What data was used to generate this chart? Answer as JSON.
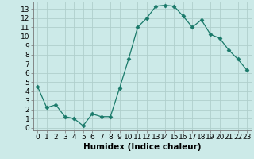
{
  "title": "",
  "xlabel": "Humidex (Indice chaleur)",
  "ylabel": "",
  "x_values": [
    0,
    1,
    2,
    3,
    4,
    5,
    6,
    7,
    8,
    9,
    10,
    11,
    12,
    13,
    14,
    15,
    16,
    17,
    18,
    19,
    20,
    21,
    22,
    23
  ],
  "y_values": [
    4.5,
    2.2,
    2.5,
    1.2,
    1.0,
    0.2,
    1.5,
    1.2,
    1.2,
    4.3,
    7.5,
    11.0,
    12.0,
    13.3,
    13.4,
    13.3,
    12.2,
    11.0,
    11.8,
    10.2,
    9.8,
    8.5,
    7.5,
    6.3
  ],
  "line_color": "#1a7a6a",
  "marker": "D",
  "marker_size": 2.5,
  "bg_color": "#cceae8",
  "grid_color": "#b0cfcc",
  "ylim": [
    -0.3,
    13.8
  ],
  "xlim": [
    -0.5,
    23.5
  ],
  "yticks": [
    0,
    1,
    2,
    3,
    4,
    5,
    6,
    7,
    8,
    9,
    10,
    11,
    12,
    13
  ],
  "xticks": [
    0,
    1,
    2,
    3,
    4,
    5,
    6,
    7,
    8,
    9,
    10,
    11,
    12,
    13,
    14,
    15,
    16,
    17,
    18,
    19,
    20,
    21,
    22,
    23
  ],
  "tick_fontsize": 6.5,
  "label_fontsize": 7.5
}
